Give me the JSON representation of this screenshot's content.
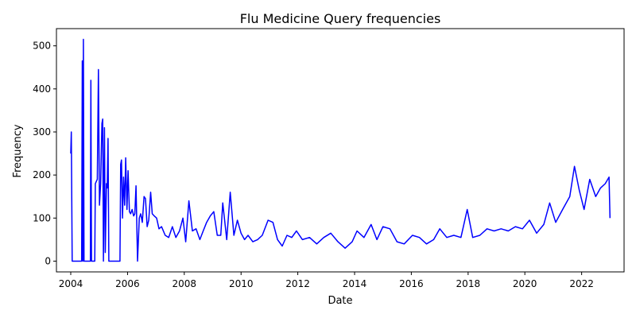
{
  "chart_data": {
    "type": "line",
    "title": "Flu Medicine Query frequencies",
    "xlabel": "Date",
    "ylabel": "Frequency",
    "x_domain": [
      "2003-07-01",
      "2023-07-01"
    ],
    "xlim": [
      "2003-07-01",
      "2023-07-01"
    ],
    "ylim": [
      -25,
      540
    ],
    "x_ticks": [
      "2004",
      "2006",
      "2008",
      "2010",
      "2012",
      "2014",
      "2016",
      "2018",
      "2020",
      "2022"
    ],
    "y_ticks": [
      0,
      100,
      200,
      300,
      400,
      500
    ],
    "grid": false,
    "series": [
      {
        "color": "#0000ff",
        "points": [
          [
            "2004-01-01",
            250
          ],
          [
            "2004-01-08",
            300
          ],
          [
            "2004-01-20",
            0
          ],
          [
            "2004-05-20",
            0
          ],
          [
            "2004-05-28",
            465
          ],
          [
            "2004-06-05",
            0
          ],
          [
            "2004-06-12",
            515
          ],
          [
            "2004-06-20",
            0
          ],
          [
            "2004-09-10",
            0
          ],
          [
            "2004-09-16",
            420
          ],
          [
            "2004-09-24",
            0
          ],
          [
            "2004-11-05",
            0
          ],
          [
            "2004-11-12",
            180
          ],
          [
            "2004-11-25",
            185
          ],
          [
            "2004-12-08",
            190
          ],
          [
            "2004-12-22",
            445
          ],
          [
            "2005-01-05",
            130
          ],
          [
            "2005-01-20",
            180
          ],
          [
            "2005-02-05",
            320
          ],
          [
            "2005-02-15",
            330
          ],
          [
            "2005-02-25",
            0
          ],
          [
            "2005-03-10",
            310
          ],
          [
            "2005-03-20",
            20
          ],
          [
            "2005-04-05",
            180
          ],
          [
            "2005-04-15",
            170
          ],
          [
            "2005-04-25",
            285
          ],
          [
            "2005-05-05",
            0
          ],
          [
            "2005-09-25",
            0
          ],
          [
            "2005-10-05",
            225
          ],
          [
            "2005-10-15",
            235
          ],
          [
            "2005-10-28",
            100
          ],
          [
            "2005-11-10",
            195
          ],
          [
            "2005-11-25",
            130
          ],
          [
            "2005-12-08",
            240
          ],
          [
            "2005-12-25",
            120
          ],
          [
            "2006-01-08",
            210
          ],
          [
            "2006-01-25",
            115
          ],
          [
            "2006-02-10",
            110
          ],
          [
            "2006-03-01",
            120
          ],
          [
            "2006-03-20",
            105
          ],
          [
            "2006-04-05",
            110
          ],
          [
            "2006-04-20",
            175
          ],
          [
            "2006-05-10",
            0
          ],
          [
            "2006-06-01",
            100
          ],
          [
            "2006-06-20",
            110
          ],
          [
            "2006-07-10",
            90
          ],
          [
            "2006-08-01",
            150
          ],
          [
            "2006-08-20",
            145
          ],
          [
            "2006-09-10",
            80
          ],
          [
            "2006-10-01",
            95
          ],
          [
            "2006-10-25",
            160
          ],
          [
            "2006-11-15",
            110
          ],
          [
            "2006-12-10",
            105
          ],
          [
            "2007-01-10",
            100
          ],
          [
            "2007-02-10",
            75
          ],
          [
            "2007-03-15",
            80
          ],
          [
            "2007-05-01",
            60
          ],
          [
            "2007-06-15",
            55
          ],
          [
            "2007-08-01",
            80
          ],
          [
            "2007-09-15",
            55
          ],
          [
            "2007-11-01",
            70
          ],
          [
            "2007-12-15",
            100
          ],
          [
            "2008-01-20",
            45
          ],
          [
            "2008-03-01",
            140
          ],
          [
            "2008-04-15",
            70
          ],
          [
            "2008-06-01",
            75
          ],
          [
            "2008-07-20",
            50
          ],
          [
            "2008-09-01",
            70
          ],
          [
            "2008-10-15",
            90
          ],
          [
            "2008-12-01",
            105
          ],
          [
            "2009-01-15",
            115
          ],
          [
            "2009-03-01",
            60
          ],
          [
            "2009-04-15",
            60
          ],
          [
            "2009-05-10",
            135
          ],
          [
            "2009-07-01",
            50
          ],
          [
            "2009-08-15",
            160
          ],
          [
            "2009-10-01",
            60
          ],
          [
            "2009-11-15",
            95
          ],
          [
            "2010-01-01",
            65
          ],
          [
            "2010-02-15",
            50
          ],
          [
            "2010-04-01",
            60
          ],
          [
            "2010-06-01",
            45
          ],
          [
            "2010-08-01",
            50
          ],
          [
            "2010-10-01",
            60
          ],
          [
            "2010-12-15",
            95
          ],
          [
            "2011-02-15",
            90
          ],
          [
            "2011-04-15",
            50
          ],
          [
            "2011-06-15",
            35
          ],
          [
            "2011-08-15",
            60
          ],
          [
            "2011-10-15",
            55
          ],
          [
            "2011-12-15",
            70
          ],
          [
            "2012-03-01",
            50
          ],
          [
            "2012-06-01",
            55
          ],
          [
            "2012-09-01",
            40
          ],
          [
            "2012-12-01",
            55
          ],
          [
            "2013-03-01",
            65
          ],
          [
            "2013-06-01",
            45
          ],
          [
            "2013-09-01",
            30
          ],
          [
            "2013-12-01",
            45
          ],
          [
            "2014-02-01",
            70
          ],
          [
            "2014-05-01",
            55
          ],
          [
            "2014-08-01",
            85
          ],
          [
            "2014-10-15",
            50
          ],
          [
            "2015-01-01",
            80
          ],
          [
            "2015-04-01",
            75
          ],
          [
            "2015-07-01",
            45
          ],
          [
            "2015-10-01",
            40
          ],
          [
            "2016-01-15",
            60
          ],
          [
            "2016-04-15",
            55
          ],
          [
            "2016-07-15",
            40
          ],
          [
            "2016-10-15",
            50
          ],
          [
            "2017-01-01",
            75
          ],
          [
            "2017-04-01",
            55
          ],
          [
            "2017-07-01",
            60
          ],
          [
            "2017-10-01",
            55
          ],
          [
            "2017-12-20",
            120
          ],
          [
            "2018-03-01",
            55
          ],
          [
            "2018-06-01",
            60
          ],
          [
            "2018-09-01",
            75
          ],
          [
            "2018-12-01",
            70
          ],
          [
            "2019-03-01",
            75
          ],
          [
            "2019-06-01",
            70
          ],
          [
            "2019-09-01",
            80
          ],
          [
            "2019-12-01",
            75
          ],
          [
            "2020-03-01",
            95
          ],
          [
            "2020-06-01",
            65
          ],
          [
            "2020-09-01",
            85
          ],
          [
            "2020-11-15",
            135
          ],
          [
            "2021-02-01",
            90
          ],
          [
            "2021-05-01",
            120
          ],
          [
            "2021-08-01",
            150
          ],
          [
            "2021-10-01",
            220
          ],
          [
            "2021-12-01",
            165
          ],
          [
            "2022-02-01",
            120
          ],
          [
            "2022-04-15",
            190
          ],
          [
            "2022-07-01",
            150
          ],
          [
            "2022-09-01",
            170
          ],
          [
            "2022-11-01",
            180
          ],
          [
            "2022-12-20",
            195
          ],
          [
            "2023-01-01",
            100
          ]
        ]
      }
    ]
  }
}
